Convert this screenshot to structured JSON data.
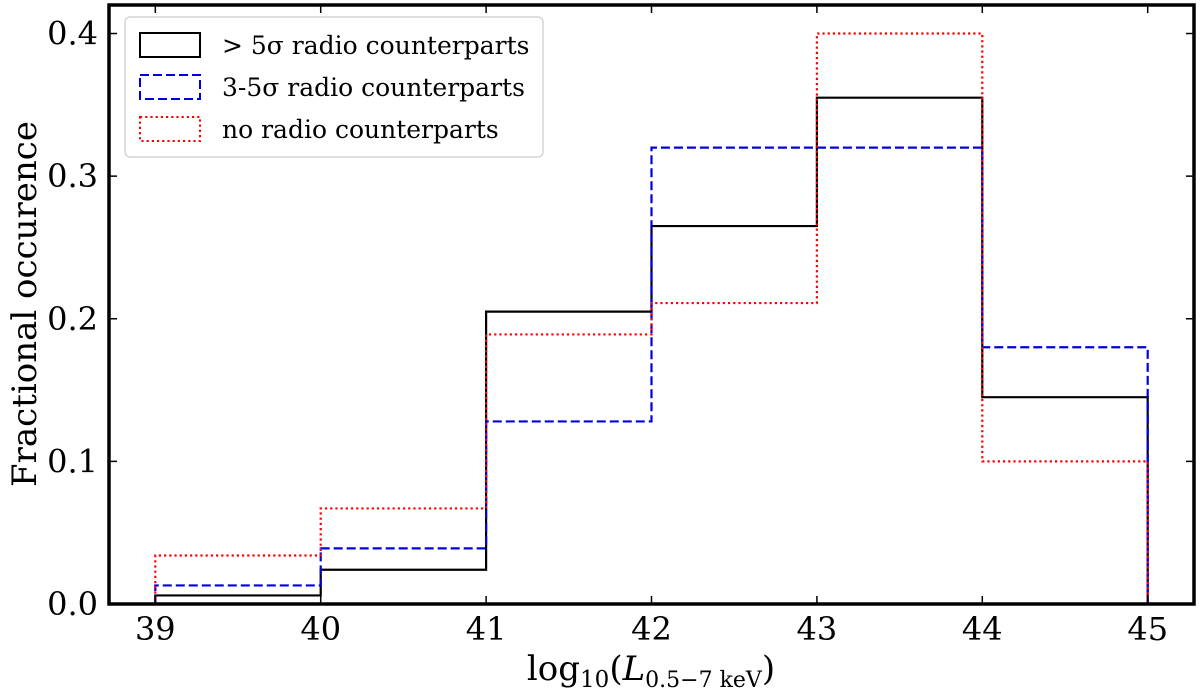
{
  "chart_data": {
    "type": "histogram",
    "bin_edges": [
      39,
      40,
      41,
      42,
      43,
      44,
      45
    ],
    "xlim": [
      38.72,
      45.28
    ],
    "ylim": [
      0,
      0.42
    ],
    "xticks": [
      39,
      40,
      41,
      42,
      43,
      44,
      45
    ],
    "yticks": [
      0.0,
      0.1,
      0.2,
      0.3,
      0.4
    ],
    "xtick_labels": [
      "39",
      "40",
      "41",
      "42",
      "43",
      "44",
      "45"
    ],
    "ytick_labels": [
      "0.0",
      "0.1",
      "0.2",
      "0.3",
      "0.4"
    ],
    "xlabel_base": "log",
    "xlabel_sub": "10",
    "xlabel_var": "L",
    "xlabel_var_sub": "0.5−7 keV",
    "ylabel": "Fractional occurence",
    "grid": false,
    "legend_position": "top-left",
    "series": [
      {
        "name": "> 5σ radio counterparts",
        "color": "#000000",
        "style": "solid",
        "values": [
          0.006,
          0.024,
          0.205,
          0.265,
          0.355,
          0.145
        ]
      },
      {
        "name": "3-5σ radio counterparts",
        "color": "#0000dd",
        "style": "dashed",
        "values": [
          0.013,
          0.039,
          0.128,
          0.32,
          0.32,
          0.18
        ]
      },
      {
        "name": "no radio counterparts",
        "color": "#ff0000",
        "style": "dotted",
        "values": [
          0.034,
          0.067,
          0.189,
          0.211,
          0.4,
          0.1
        ]
      }
    ]
  }
}
